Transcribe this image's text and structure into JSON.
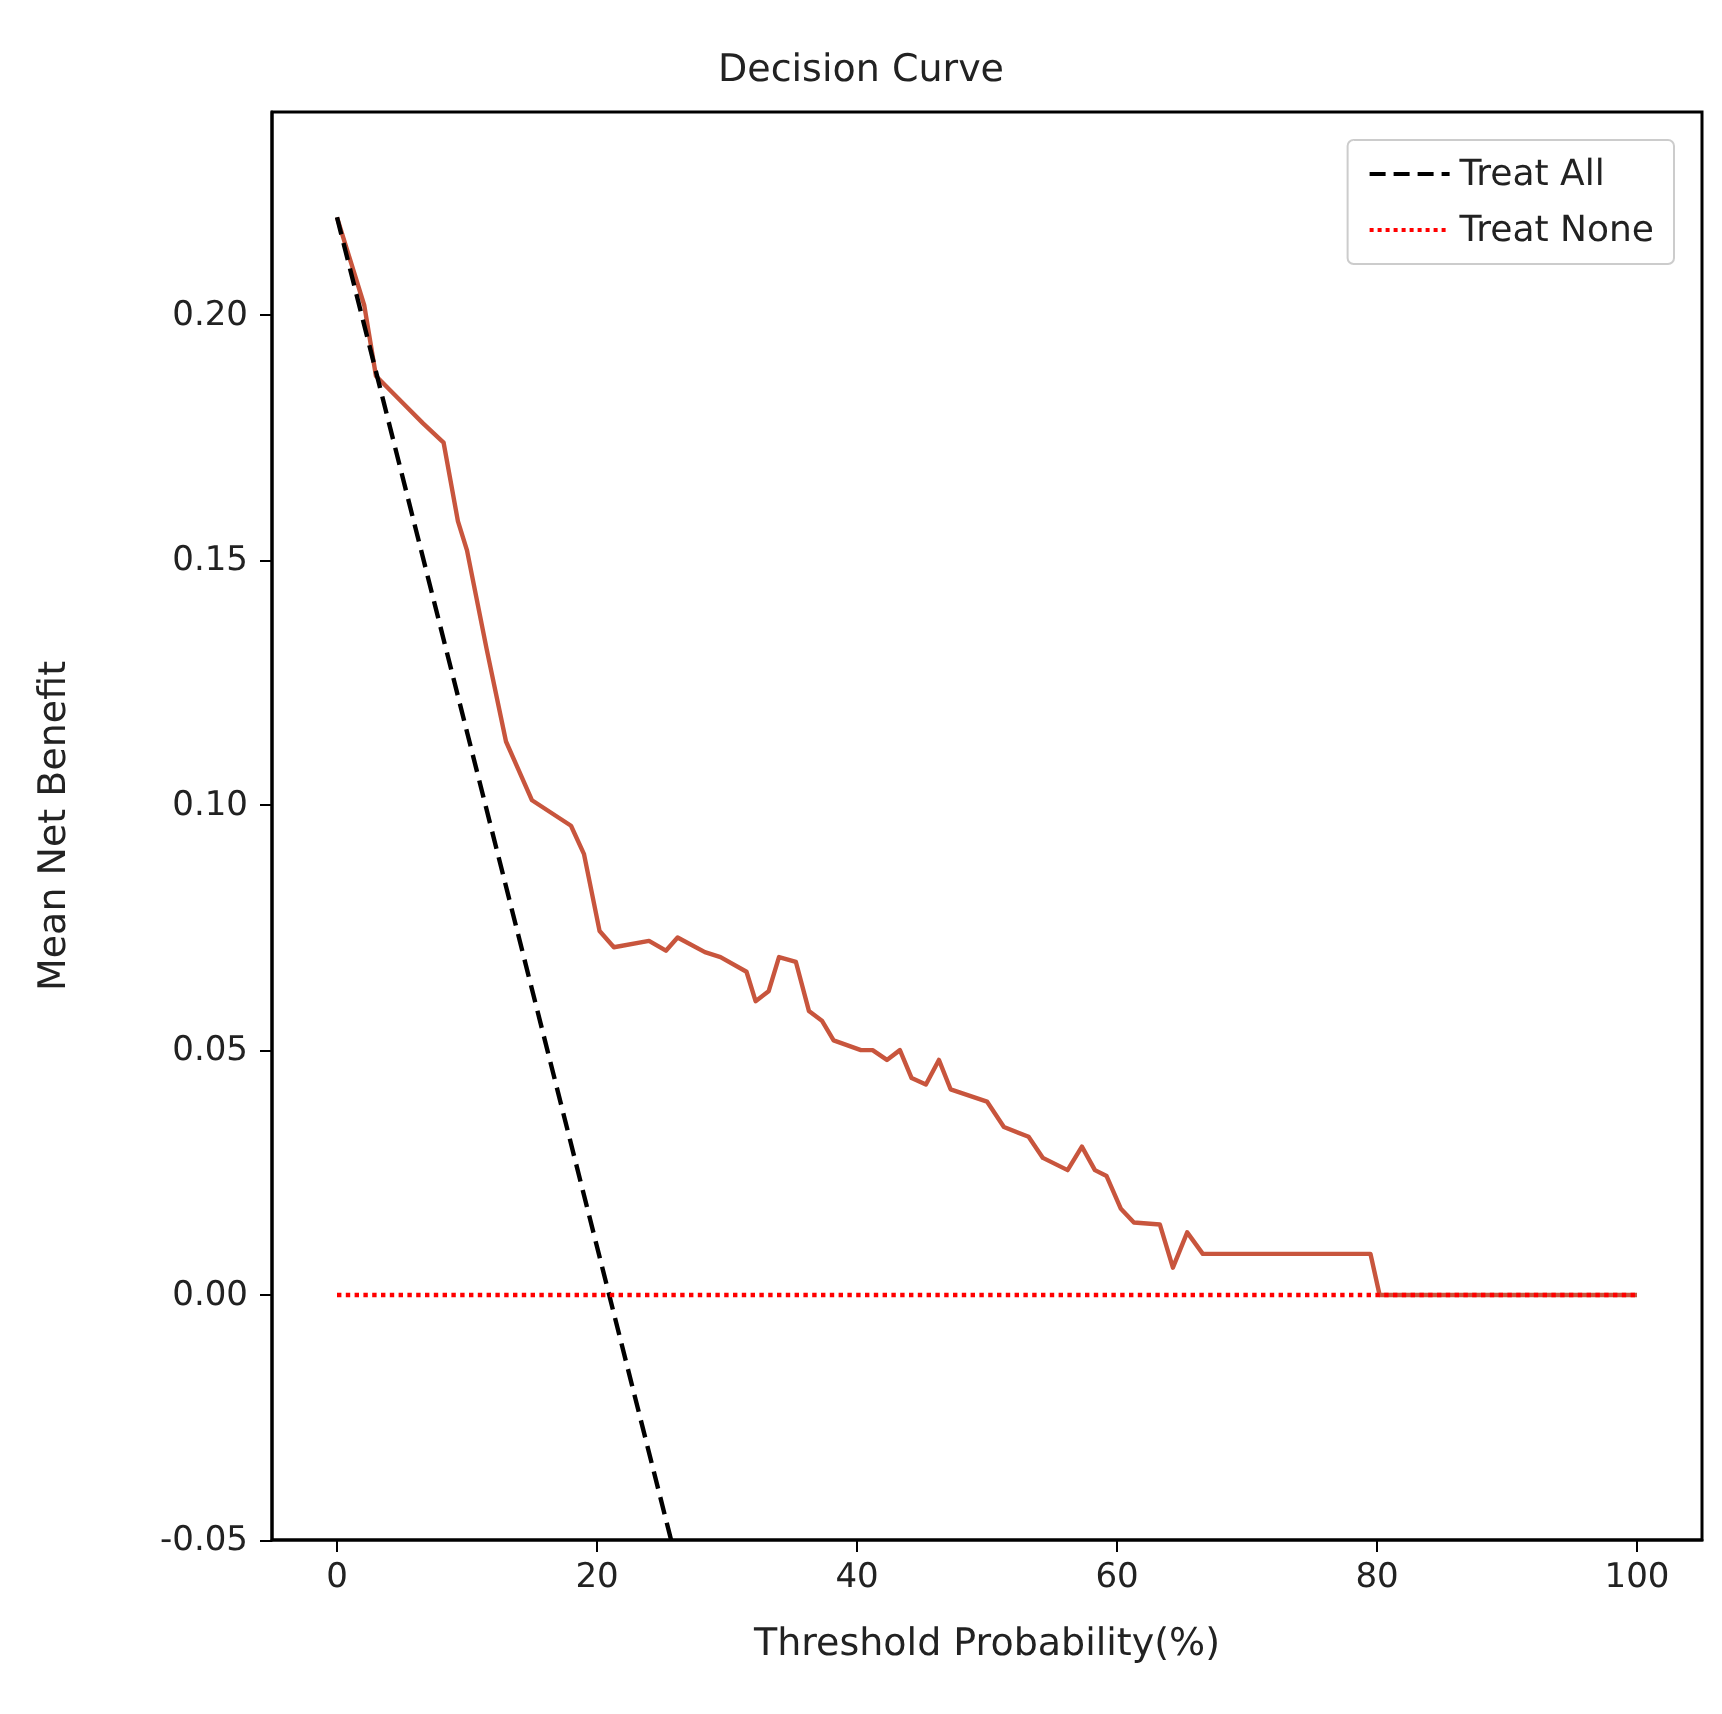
{
  "chart_data": {
    "type": "line",
    "title": "Decision Curve",
    "xlabel": "Threshold Probability(%)",
    "ylabel": "Mean Net Benefit",
    "xlim": [
      -5,
      105
    ],
    "xticks": [
      0,
      20,
      40,
      60,
      80,
      100
    ],
    "ylim": [
      -0.05,
      0.2415
    ],
    "yticks": [
      {
        "value": -0.05,
        "label": "-0.05"
      },
      {
        "value": 0,
        "label": "0.00"
      },
      {
        "value": 0.05,
        "label": "0.05"
      },
      {
        "value": 0.1,
        "label": "0.10"
      },
      {
        "value": 0.15,
        "label": "0.15"
      },
      {
        "value": 0.2,
        "label": "0.20"
      }
    ],
    "grid": false,
    "legend": "top right",
    "marker": "none",
    "series": [
      {
        "color": "#c8553d",
        "line_style": "solid",
        "x": [
          0,
          2.1,
          3,
          5.1,
          6.6,
          8.2,
          9.3,
          10,
          11.5,
          13,
          15,
          18,
          19,
          20.2,
          21.3,
          24,
          25.3,
          26.2,
          28.3,
          29.5,
          31.5,
          32.2,
          33.2,
          34,
          35.3,
          36.3,
          37.3,
          38.2,
          40.3,
          41.2,
          42.3,
          43.3,
          44.2,
          45.3,
          46.3,
          47.2,
          50,
          51.3,
          53.2,
          54.3,
          56.2,
          57.3,
          58.3,
          59.2,
          60.3,
          61.3,
          63.3,
          64.3,
          65.4,
          66.6,
          79.5,
          80.2,
          100
        ],
        "values": [
          0.22,
          0.202,
          0.1876,
          0.182,
          0.178,
          0.174,
          0.158,
          0.152,
          0.132,
          0.113,
          0.101,
          0.0958,
          0.09,
          0.0743,
          0.071,
          0.0723,
          0.0703,
          0.073,
          0.07,
          0.069,
          0.066,
          0.06,
          0.062,
          0.069,
          0.068,
          0.058,
          0.056,
          0.052,
          0.05,
          0.05,
          0.048,
          0.05,
          0.0443,
          0.043,
          0.048,
          0.042,
          0.0395,
          0.0343,
          0.0323,
          0.028,
          0.0255,
          0.0303,
          0.0255,
          0.0243,
          0.0176,
          0.0148,
          0.0144,
          0.0056,
          0.0128,
          0.0084,
          0.0084,
          0,
          0
        ]
      },
      {
        "name": "Treat All",
        "color": "#000000",
        "line_style": "dashed",
        "x": [
          0,
          25.7
        ],
        "values": [
          0.22,
          -0.05
        ]
      },
      {
        "name": "Treat None",
        "color": "#ff0000",
        "line_style": "dotted",
        "x": [
          0,
          100
        ],
        "values": [
          0,
          0
        ]
      }
    ]
  }
}
